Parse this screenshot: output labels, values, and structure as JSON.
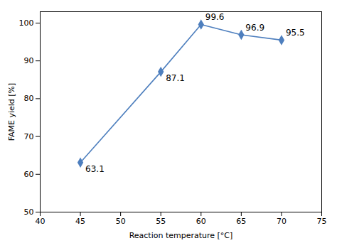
{
  "chart_data": {
    "type": "line",
    "x": [
      45,
      55,
      60,
      65,
      70
    ],
    "values": [
      63.1,
      87.1,
      99.6,
      96.9,
      95.5
    ],
    "color": "#4E7FBE",
    "marker": "diamond",
    "data_labels": true,
    "xlabel": "Reaction temperature [°C]",
    "ylabel": "FAME yield [%]",
    "xlim": [
      40,
      75
    ],
    "ylim": [
      50,
      103
    ],
    "xticks": [
      40,
      45,
      50,
      55,
      60,
      65,
      70,
      75
    ],
    "yticks": [
      50,
      60,
      70,
      80,
      90,
      100
    ],
    "grid": false
  }
}
